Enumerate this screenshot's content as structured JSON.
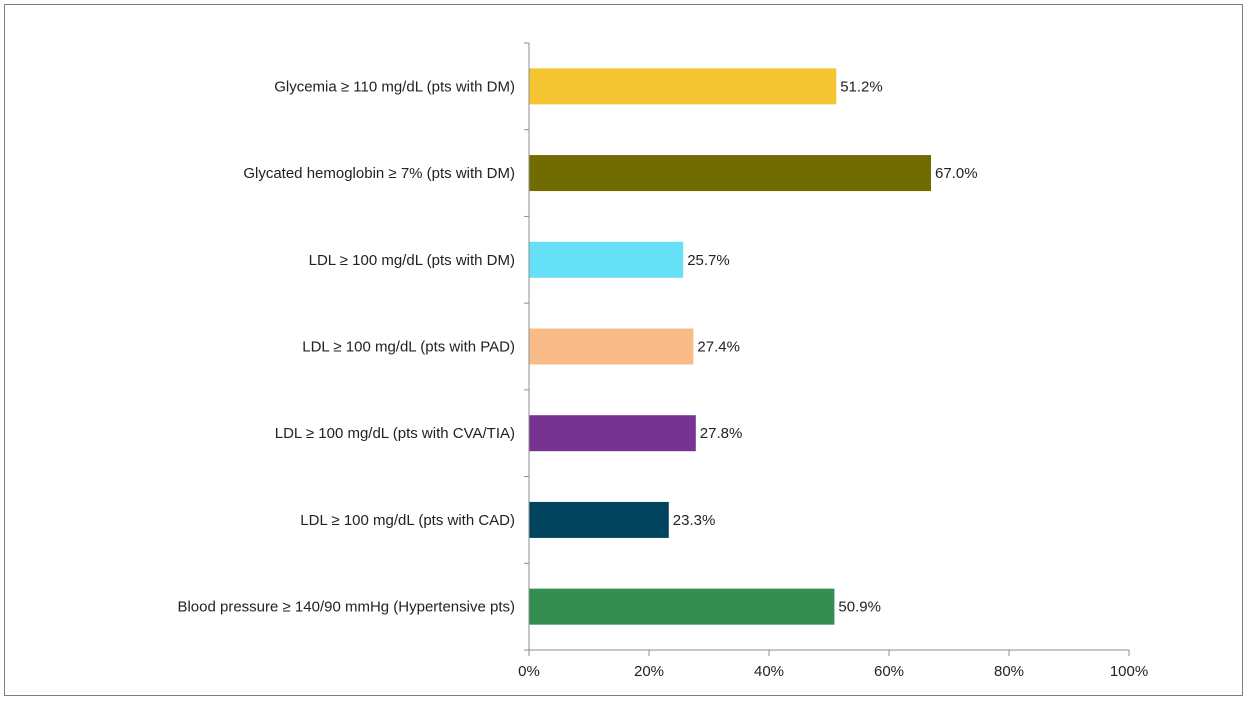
{
  "chart_data": {
    "type": "bar",
    "orientation": "horizontal",
    "title": "",
    "xlabel": "",
    "ylabel": "",
    "xlim": [
      0,
      100
    ],
    "x_ticks": [
      "0%",
      "20%",
      "40%",
      "60%",
      "80%",
      "100%"
    ],
    "x_tick_values": [
      0,
      20,
      40,
      60,
      80,
      100
    ],
    "grid": false,
    "legend": "none",
    "categories": [
      "Glycemia ≥ 110 mg/dL (pts with DM)",
      "Glycated hemoglobin ≥ 7% (pts with DM)",
      "LDL ≥ 100 mg/dL (pts with DM)",
      "LDL ≥ 100 mg/dL (pts with PAD)",
      "LDL ≥ 100 mg/dL (pts with CVA/TIA)",
      "LDL ≥ 100 mg/dL (pts with CAD)",
      "Blood pressure ≥ 140/90 mmHg (Hypertensive pts)"
    ],
    "values": [
      51.2,
      67.0,
      25.7,
      27.4,
      27.8,
      23.3,
      50.9
    ],
    "value_labels": [
      "51.2%",
      "67.0%",
      "25.7%",
      "27.4%",
      "27.8%",
      "23.3%",
      "50.9%"
    ],
    "colors": [
      "#F5C431",
      "#706C00",
      "#66E0F6",
      "#F9BC88",
      "#773391",
      "#02445E",
      "#348E52"
    ]
  }
}
